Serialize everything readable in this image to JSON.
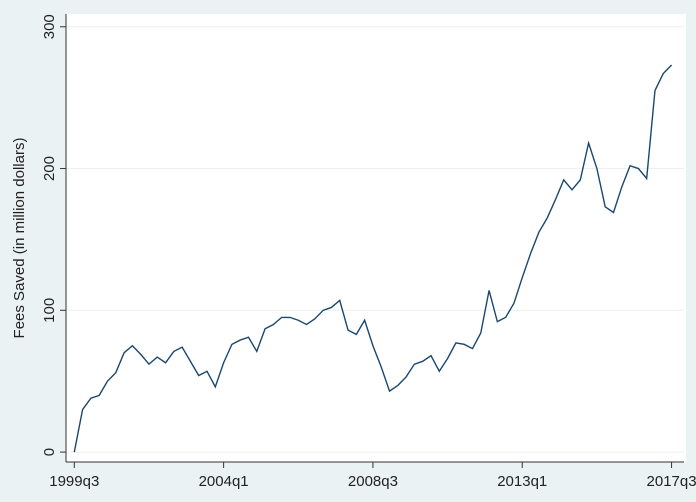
{
  "chart_data": {
    "type": "line",
    "y_label": "Fees Saved (in million dollars)",
    "x": [
      158,
      159,
      160,
      161,
      162,
      163,
      164,
      165,
      166,
      167,
      168,
      169,
      170,
      171,
      172,
      173,
      174,
      175,
      176,
      177,
      178,
      179,
      180,
      181,
      182,
      183,
      184,
      185,
      186,
      187,
      188,
      189,
      190,
      191,
      192,
      193,
      194,
      195,
      196,
      197,
      198,
      199,
      200,
      201,
      202,
      203,
      204,
      205,
      206,
      207,
      208,
      209,
      210,
      211,
      212,
      213,
      214,
      215,
      216,
      217,
      218,
      219,
      220,
      221,
      222,
      223,
      224,
      225,
      226,
      227,
      228,
      229,
      230
    ],
    "series": [
      {
        "name": "Fees Saved",
        "color": "#1a476f",
        "values": [
          0,
          30,
          38,
          40,
          50,
          56,
          70,
          75,
          69,
          62,
          67,
          63,
          71,
          74,
          64,
          54,
          57,
          46,
          63,
          76,
          79,
          81,
          71,
          87,
          90,
          95,
          95,
          93,
          90,
          94,
          100,
          102,
          107,
          86,
          83,
          93,
          75,
          60,
          43,
          47,
          53,
          62,
          64,
          68,
          57,
          66,
          77,
          76,
          73,
          84,
          114,
          92,
          95,
          105,
          123,
          140,
          155,
          165,
          178,
          192,
          185,
          192,
          218,
          200,
          173,
          169,
          187,
          202,
          200,
          193,
          255,
          267,
          273
        ]
      }
    ],
    "xlim": [
      157,
      231.5
    ],
    "xticks": [
      {
        "value": 158,
        "label": "1999q3"
      },
      {
        "value": 176,
        "label": "2004q1"
      },
      {
        "value": 194,
        "label": "2008q3"
      },
      {
        "value": 212,
        "label": "2013q1"
      },
      {
        "value": 230,
        "label": "2017q3"
      }
    ],
    "ylim": [
      -7,
      309
    ],
    "yticks": [
      0,
      100,
      200,
      300
    ],
    "grid": true
  }
}
